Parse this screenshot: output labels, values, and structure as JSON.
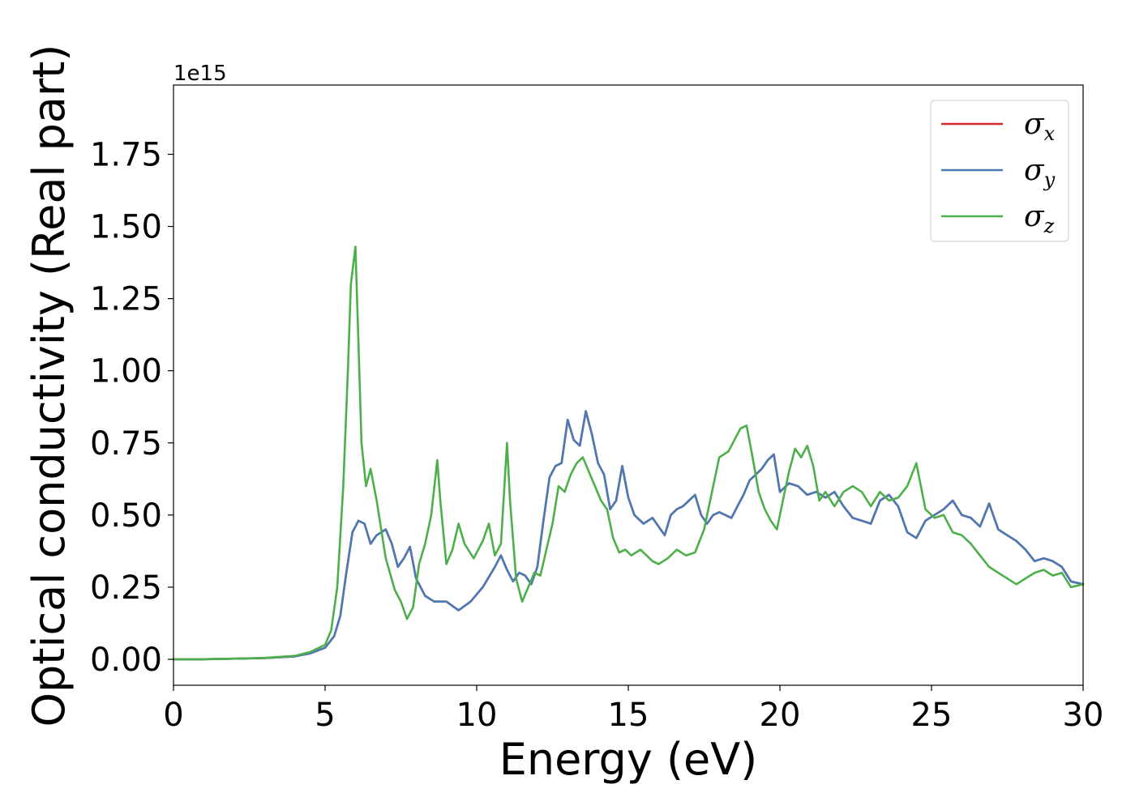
{
  "chart_data": {
    "type": "line",
    "xlabel": "Energy (eV)",
    "ylabel": "Optical conductivity (Real part)",
    "y_offset_label": "1e15",
    "xlim": [
      0,
      30
    ],
    "ylim": [
      -0.09,
      1.99
    ],
    "x_ticks": [
      0,
      5,
      10,
      15,
      20,
      25,
      30
    ],
    "x_tick_labels": [
      "0",
      "5",
      "10",
      "15",
      "20",
      "25",
      "30"
    ],
    "y_ticks": [
      0,
      0.25,
      0.5,
      0.75,
      1.0,
      1.25,
      1.5,
      1.75
    ],
    "y_tick_labels": [
      "0.00",
      "0.25",
      "0.50",
      "0.75",
      "1.00",
      "1.25",
      "1.50",
      "1.75"
    ],
    "grid": false,
    "legend_position": "top-right",
    "legend": [
      {
        "symbol": "σ",
        "sub": "x",
        "color": "#d62728"
      },
      {
        "symbol": "σ",
        "sub": "y",
        "color": "#4a7ab5"
      },
      {
        "symbol": "σ",
        "sub": "z",
        "color": "#4daf4a"
      }
    ],
    "series": [
      {
        "color": "#d62728",
        "x": [
          0,
          1,
          2,
          3,
          4,
          4.5,
          5,
          5.3,
          5.5,
          5.7,
          5.9,
          6.1,
          6.3,
          6.5,
          6.7,
          7.0,
          7.2,
          7.4,
          7.6,
          7.8,
          8.0,
          8.3,
          8.6,
          9.0,
          9.4,
          9.8,
          10.2,
          10.6,
          10.8,
          11.0,
          11.2,
          11.4,
          11.6,
          11.8,
          12.0,
          12.2,
          12.4,
          12.6,
          12.8,
          13.0,
          13.2,
          13.4,
          13.6,
          13.8,
          14.0,
          14.2,
          14.4,
          14.6,
          14.8,
          15.0,
          15.2,
          15.5,
          15.8,
          16.0,
          16.2,
          16.4,
          16.6,
          16.8,
          17.0,
          17.2,
          17.4,
          17.6,
          17.8,
          18.0,
          18.4,
          18.6,
          18.8,
          19.0,
          19.2,
          19.4,
          19.6,
          19.8,
          20.0,
          20.3,
          20.6,
          20.9,
          21.2,
          21.5,
          21.8,
          22.1,
          22.4,
          22.7,
          23.0,
          23.3,
          23.6,
          23.9,
          24.2,
          24.5,
          24.8,
          25.1,
          25.4,
          25.7,
          26.0,
          26.3,
          26.6,
          26.9,
          27.2,
          27.5,
          27.8,
          28.1,
          28.4,
          28.7,
          29.0,
          29.3,
          29.6,
          30.0
        ],
        "y": [
          0,
          0,
          0.002,
          0.004,
          0.01,
          0.02,
          0.04,
          0.08,
          0.15,
          0.3,
          0.44,
          0.48,
          0.47,
          0.4,
          0.43,
          0.45,
          0.4,
          0.32,
          0.35,
          0.39,
          0.28,
          0.22,
          0.2,
          0.2,
          0.17,
          0.2,
          0.25,
          0.32,
          0.36,
          0.31,
          0.27,
          0.3,
          0.29,
          0.26,
          0.32,
          0.48,
          0.63,
          0.67,
          0.68,
          0.83,
          0.76,
          0.74,
          0.86,
          0.78,
          0.68,
          0.64,
          0.52,
          0.55,
          0.67,
          0.56,
          0.5,
          0.47,
          0.49,
          0.46,
          0.43,
          0.5,
          0.52,
          0.53,
          0.55,
          0.57,
          0.5,
          0.47,
          0.5,
          0.51,
          0.49,
          0.53,
          0.57,
          0.62,
          0.64,
          0.66,
          0.69,
          0.71,
          0.58,
          0.61,
          0.6,
          0.57,
          0.58,
          0.56,
          0.58,
          0.53,
          0.49,
          0.48,
          0.47,
          0.55,
          0.57,
          0.53,
          0.44,
          0.42,
          0.48,
          0.5,
          0.52,
          0.55,
          0.5,
          0.49,
          0.46,
          0.54,
          0.45,
          0.43,
          0.41,
          0.38,
          0.34,
          0.35,
          0.34,
          0.32,
          0.27,
          0.26
        ]
      },
      {
        "color": "#4a7ab5",
        "x": [
          0,
          1,
          2,
          3,
          4,
          4.5,
          5,
          5.3,
          5.5,
          5.7,
          5.9,
          6.1,
          6.3,
          6.5,
          6.7,
          7.0,
          7.2,
          7.4,
          7.6,
          7.8,
          8.0,
          8.3,
          8.6,
          9.0,
          9.4,
          9.8,
          10.2,
          10.6,
          10.8,
          11.0,
          11.2,
          11.4,
          11.6,
          11.8,
          12.0,
          12.2,
          12.4,
          12.6,
          12.8,
          13.0,
          13.2,
          13.4,
          13.6,
          13.8,
          14.0,
          14.2,
          14.4,
          14.6,
          14.8,
          15.0,
          15.2,
          15.5,
          15.8,
          16.0,
          16.2,
          16.4,
          16.6,
          16.8,
          17.0,
          17.2,
          17.4,
          17.6,
          17.8,
          18.0,
          18.4,
          18.6,
          18.8,
          19.0,
          19.2,
          19.4,
          19.6,
          19.8,
          20.0,
          20.3,
          20.6,
          20.9,
          21.2,
          21.5,
          21.8,
          22.1,
          22.4,
          22.7,
          23.0,
          23.3,
          23.6,
          23.9,
          24.2,
          24.5,
          24.8,
          25.1,
          25.4,
          25.7,
          26.0,
          26.3,
          26.6,
          26.9,
          27.2,
          27.5,
          27.8,
          28.1,
          28.4,
          28.7,
          29.0,
          29.3,
          29.6,
          30.0
        ],
        "y": [
          0,
          0,
          0.002,
          0.004,
          0.01,
          0.02,
          0.04,
          0.08,
          0.15,
          0.3,
          0.44,
          0.48,
          0.47,
          0.4,
          0.43,
          0.45,
          0.4,
          0.32,
          0.35,
          0.39,
          0.28,
          0.22,
          0.2,
          0.2,
          0.17,
          0.2,
          0.25,
          0.32,
          0.36,
          0.31,
          0.27,
          0.3,
          0.29,
          0.26,
          0.32,
          0.48,
          0.63,
          0.67,
          0.68,
          0.83,
          0.76,
          0.74,
          0.86,
          0.78,
          0.68,
          0.64,
          0.52,
          0.55,
          0.67,
          0.56,
          0.5,
          0.47,
          0.49,
          0.46,
          0.43,
          0.5,
          0.52,
          0.53,
          0.55,
          0.57,
          0.5,
          0.47,
          0.5,
          0.51,
          0.49,
          0.53,
          0.57,
          0.62,
          0.64,
          0.66,
          0.69,
          0.71,
          0.58,
          0.61,
          0.6,
          0.57,
          0.58,
          0.56,
          0.58,
          0.53,
          0.49,
          0.48,
          0.47,
          0.55,
          0.57,
          0.53,
          0.44,
          0.42,
          0.48,
          0.5,
          0.52,
          0.55,
          0.5,
          0.49,
          0.46,
          0.54,
          0.45,
          0.43,
          0.41,
          0.38,
          0.34,
          0.35,
          0.34,
          0.32,
          0.27,
          0.26
        ]
      },
      {
        "color": "#4daf4a",
        "x": [
          0,
          1,
          2,
          3,
          4,
          4.5,
          5,
          5.2,
          5.4,
          5.6,
          5.75,
          5.85,
          6.0,
          6.1,
          6.2,
          6.35,
          6.5,
          6.7,
          7.0,
          7.3,
          7.5,
          7.7,
          7.9,
          8.1,
          8.3,
          8.5,
          8.7,
          8.8,
          9.0,
          9.2,
          9.4,
          9.6,
          9.9,
          10.2,
          10.4,
          10.6,
          10.8,
          11.0,
          11.1,
          11.3,
          11.5,
          11.7,
          11.9,
          12.1,
          12.3,
          12.5,
          12.7,
          12.9,
          13.1,
          13.3,
          13.5,
          13.7,
          13.9,
          14.1,
          14.3,
          14.5,
          14.7,
          14.9,
          15.1,
          15.4,
          15.8,
          16.0,
          16.3,
          16.6,
          16.9,
          17.2,
          17.5,
          17.8,
          18.0,
          18.3,
          18.5,
          18.7,
          18.9,
          19.1,
          19.3,
          19.5,
          19.7,
          19.9,
          20.1,
          20.3,
          20.5,
          20.7,
          20.9,
          21.1,
          21.3,
          21.5,
          21.8,
          22.1,
          22.4,
          22.7,
          23.0,
          23.3,
          23.6,
          23.9,
          24.2,
          24.5,
          24.8,
          25.1,
          25.4,
          25.7,
          26.0,
          26.3,
          26.6,
          26.9,
          27.2,
          27.5,
          27.8,
          28.1,
          28.4,
          28.7,
          29.0,
          29.3,
          29.6,
          30.0
        ],
        "y": [
          0,
          0,
          0.002,
          0.005,
          0.012,
          0.025,
          0.05,
          0.1,
          0.25,
          0.6,
          1.0,
          1.3,
          1.43,
          1.1,
          0.75,
          0.6,
          0.66,
          0.55,
          0.35,
          0.24,
          0.2,
          0.14,
          0.18,
          0.33,
          0.4,
          0.5,
          0.69,
          0.55,
          0.33,
          0.38,
          0.47,
          0.4,
          0.35,
          0.41,
          0.47,
          0.36,
          0.4,
          0.75,
          0.55,
          0.28,
          0.2,
          0.25,
          0.3,
          0.29,
          0.38,
          0.47,
          0.6,
          0.58,
          0.64,
          0.68,
          0.7,
          0.65,
          0.6,
          0.55,
          0.52,
          0.42,
          0.37,
          0.38,
          0.36,
          0.38,
          0.34,
          0.33,
          0.35,
          0.38,
          0.36,
          0.37,
          0.45,
          0.6,
          0.7,
          0.72,
          0.76,
          0.8,
          0.81,
          0.7,
          0.58,
          0.52,
          0.48,
          0.45,
          0.55,
          0.65,
          0.73,
          0.7,
          0.74,
          0.67,
          0.55,
          0.58,
          0.53,
          0.58,
          0.6,
          0.58,
          0.53,
          0.58,
          0.55,
          0.56,
          0.6,
          0.68,
          0.52,
          0.49,
          0.5,
          0.44,
          0.43,
          0.4,
          0.36,
          0.32,
          0.3,
          0.28,
          0.26,
          0.28,
          0.3,
          0.31,
          0.29,
          0.3,
          0.25,
          0.26
        ]
      }
    ]
  }
}
